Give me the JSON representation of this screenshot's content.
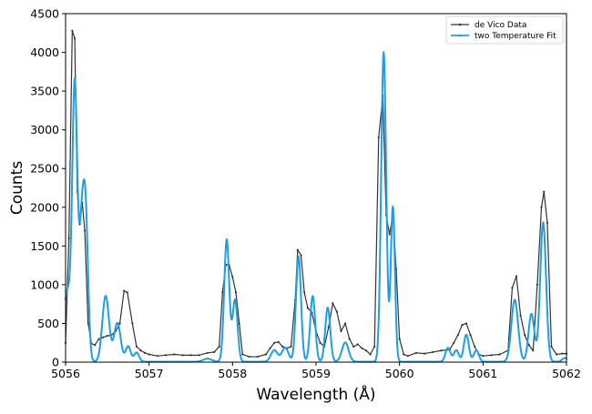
{
  "chart_data": {
    "type": "line",
    "xlabel": "Wavelength (Å)",
    "ylabel": "Counts",
    "xlim": [
      5056,
      5062
    ],
    "ylim": [
      0,
      4500
    ],
    "xticks": [
      "5056",
      "5057",
      "5058",
      "5059",
      "5060",
      "5061",
      "5062"
    ],
    "yticks": [
      "0",
      "500",
      "1000",
      "1500",
      "2000",
      "2500",
      "3000",
      "3500",
      "4000",
      "4500"
    ],
    "grid": false,
    "legend_position": "top-right",
    "colors": {
      "data": "#333333",
      "fit": "#1f9ee6"
    },
    "series": [
      {
        "name": "de Vico Data",
        "style": "line-with-markers",
        "points": [
          [
            5056.0,
            250
          ],
          [
            5056.04,
            1600
          ],
          [
            5056.08,
            4280
          ],
          [
            5056.11,
            4180
          ],
          [
            5056.14,
            2200
          ],
          [
            5056.17,
            1780
          ],
          [
            5056.2,
            2060
          ],
          [
            5056.23,
            1700
          ],
          [
            5056.27,
            500
          ],
          [
            5056.31,
            240
          ],
          [
            5056.35,
            220
          ],
          [
            5056.4,
            300
          ],
          [
            5056.45,
            320
          ],
          [
            5056.5,
            340
          ],
          [
            5056.55,
            350
          ],
          [
            5056.6,
            400
          ],
          [
            5056.65,
            500
          ],
          [
            5056.7,
            920
          ],
          [
            5056.74,
            900
          ],
          [
            5056.8,
            500
          ],
          [
            5056.85,
            200
          ],
          [
            5056.9,
            150
          ],
          [
            5056.95,
            120
          ],
          [
            5057.0,
            100
          ],
          [
            5057.1,
            80
          ],
          [
            5057.2,
            90
          ],
          [
            5057.3,
            100
          ],
          [
            5057.4,
            90
          ],
          [
            5057.5,
            90
          ],
          [
            5057.6,
            90
          ],
          [
            5057.7,
            120
          ],
          [
            5057.78,
            130
          ],
          [
            5057.84,
            200
          ],
          [
            5057.88,
            900
          ],
          [
            5057.92,
            1260
          ],
          [
            5057.96,
            1250
          ],
          [
            5058.0,
            1100
          ],
          [
            5058.04,
            900
          ],
          [
            5058.08,
            500
          ],
          [
            5058.12,
            100
          ],
          [
            5058.2,
            70
          ],
          [
            5058.3,
            70
          ],
          [
            5058.4,
            100
          ],
          [
            5058.45,
            180
          ],
          [
            5058.5,
            250
          ],
          [
            5058.55,
            260
          ],
          [
            5058.6,
            200
          ],
          [
            5058.65,
            180
          ],
          [
            5058.7,
            200
          ],
          [
            5058.75,
            800
          ],
          [
            5058.78,
            1450
          ],
          [
            5058.82,
            1380
          ],
          [
            5058.86,
            900
          ],
          [
            5058.9,
            700
          ],
          [
            5058.95,
            640
          ],
          [
            5059.0,
            400
          ],
          [
            5059.05,
            250
          ],
          [
            5059.1,
            200
          ],
          [
            5059.15,
            450
          ],
          [
            5059.2,
            760
          ],
          [
            5059.25,
            650
          ],
          [
            5059.3,
            400
          ],
          [
            5059.35,
            500
          ],
          [
            5059.4,
            300
          ],
          [
            5059.45,
            200
          ],
          [
            5059.5,
            230
          ],
          [
            5059.55,
            180
          ],
          [
            5059.6,
            150
          ],
          [
            5059.65,
            100
          ],
          [
            5059.7,
            200
          ],
          [
            5059.75,
            2900
          ],
          [
            5059.8,
            3440
          ],
          [
            5059.84,
            1900
          ],
          [
            5059.88,
            1650
          ],
          [
            5059.92,
            1900
          ],
          [
            5059.96,
            1200
          ],
          [
            5060.0,
            300
          ],
          [
            5060.05,
            100
          ],
          [
            5060.1,
            80
          ],
          [
            5060.2,
            120
          ],
          [
            5060.3,
            110
          ],
          [
            5060.4,
            130
          ],
          [
            5060.5,
            150
          ],
          [
            5060.6,
            160
          ],
          [
            5060.65,
            250
          ],
          [
            5060.7,
            350
          ],
          [
            5060.75,
            480
          ],
          [
            5060.8,
            500
          ],
          [
            5060.85,
            350
          ],
          [
            5060.9,
            200
          ],
          [
            5060.95,
            100
          ],
          [
            5061.0,
            80
          ],
          [
            5061.1,
            90
          ],
          [
            5061.2,
            100
          ],
          [
            5061.3,
            150
          ],
          [
            5061.35,
            960
          ],
          [
            5061.4,
            1110
          ],
          [
            5061.45,
            600
          ],
          [
            5061.5,
            350
          ],
          [
            5061.55,
            220
          ],
          [
            5061.6,
            150
          ],
          [
            5061.65,
            1000
          ],
          [
            5061.7,
            2000
          ],
          [
            5061.73,
            2200
          ],
          [
            5061.77,
            1800
          ],
          [
            5061.82,
            200
          ],
          [
            5061.88,
            100
          ],
          [
            5061.95,
            110
          ],
          [
            5062.0,
            110
          ]
        ]
      },
      {
        "name": "two Temperature Fit",
        "style": "line-with-markers",
        "baseline": 5,
        "peaks": [
          [
            5056.02,
            900,
            0.04
          ],
          [
            5056.11,
            3550,
            0.03
          ],
          [
            5056.19,
            1500,
            0.03
          ],
          [
            5056.24,
            1800,
            0.03
          ],
          [
            5056.48,
            850,
            0.04
          ],
          [
            5056.62,
            500,
            0.04
          ],
          [
            5056.75,
            200,
            0.03
          ],
          [
            5056.85,
            120,
            0.03
          ],
          [
            5057.7,
            40,
            0.05
          ],
          [
            5057.93,
            1580,
            0.03
          ],
          [
            5058.03,
            800,
            0.03
          ],
          [
            5058.5,
            150,
            0.04
          ],
          [
            5058.63,
            180,
            0.04
          ],
          [
            5058.79,
            1360,
            0.03
          ],
          [
            5058.96,
            850,
            0.03
          ],
          [
            5059.14,
            700,
            0.03
          ],
          [
            5059.35,
            250,
            0.04
          ],
          [
            5059.81,
            4000,
            0.03
          ],
          [
            5059.92,
            2000,
            0.025
          ],
          [
            5060.58,
            180,
            0.03
          ],
          [
            5060.68,
            150,
            0.03
          ],
          [
            5060.8,
            350,
            0.03
          ],
          [
            5060.92,
            150,
            0.03
          ],
          [
            5061.38,
            800,
            0.04
          ],
          [
            5061.58,
            620,
            0.035
          ],
          [
            5061.72,
            1800,
            0.035
          ],
          [
            5061.98,
            50,
            0.03
          ]
        ]
      }
    ]
  }
}
